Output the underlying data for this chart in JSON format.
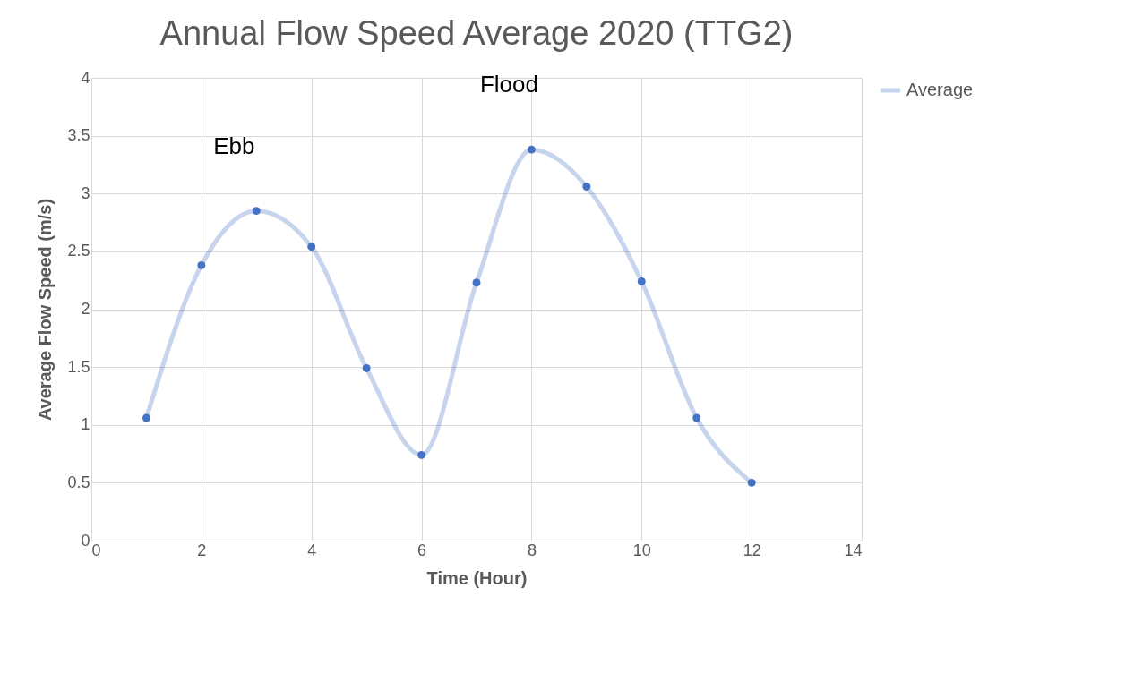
{
  "chart_data": {
    "type": "line",
    "title": "Annual Flow Speed Average 2020 (TTG2)",
    "xlabel": "Time (Hour)",
    "ylabel": "Average Flow Speed (m/s)",
    "x": [
      1,
      2,
      3,
      4,
      5,
      6,
      7,
      8,
      9,
      10,
      11,
      12
    ],
    "series": [
      {
        "name": "Average",
        "color": "#4472c4",
        "values": [
          1.06,
          2.38,
          2.85,
          2.54,
          1.49,
          0.74,
          2.23,
          3.38,
          3.06,
          2.24,
          1.06,
          0.5
        ]
      }
    ],
    "xlim": [
      0,
      14
    ],
    "xticks": [
      0,
      2,
      4,
      6,
      8,
      10,
      12,
      14
    ],
    "ylim": [
      0,
      4
    ],
    "yticks": [
      0,
      0.5,
      1,
      1.5,
      2,
      2.5,
      3,
      3.5,
      4
    ],
    "annotations": [
      "Ebb",
      "Flood"
    ],
    "grid": true,
    "legend": "right",
    "marker": "circle",
    "line_style": "solid"
  }
}
